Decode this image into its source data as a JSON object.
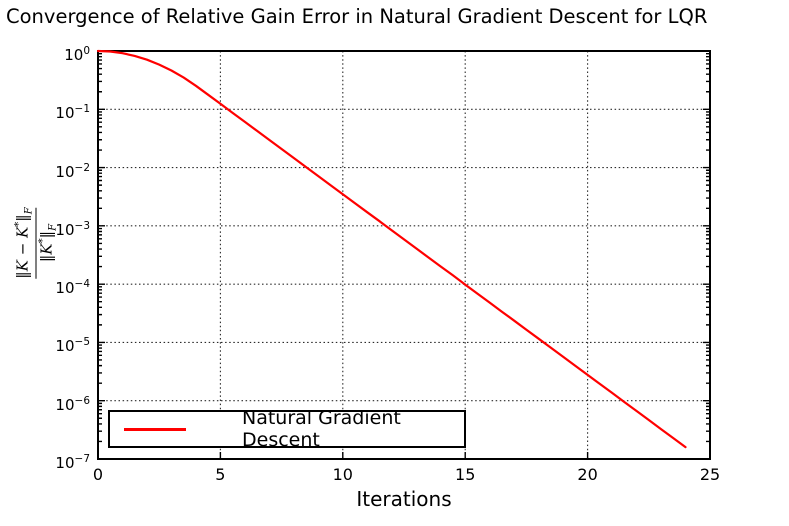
{
  "chart_data": {
    "type": "line",
    "yscale": "log",
    "title": "Convergence of Relative Gain Error in Natural Gradient Descent for LQR",
    "xlabel": "Iterations",
    "ylabel": "‖K − K*‖F / ‖K*‖F",
    "ylabel_parts": {
      "num_body": "‖K − K",
      "num_sup": "*",
      "num_close": "‖",
      "num_sub": "F",
      "den_body": "‖K",
      "den_sup": "*",
      "den_close": "‖",
      "den_sub": "F"
    },
    "xlim": [
      0,
      25
    ],
    "ylim": [
      1e-07,
      1
    ],
    "x_ticks": [
      0,
      5,
      10,
      15,
      20,
      25
    ],
    "y_tick_exponents": [
      0,
      -1,
      -2,
      -3,
      -4,
      -5,
      -6,
      -7
    ],
    "grid": true,
    "grid_style": "dotted",
    "colors": {
      "line": "#ff0000",
      "axes": "#000000",
      "grid": "#2b2b2b"
    },
    "legend": {
      "position": "lower-left",
      "border_color": "#000000",
      "entries": [
        {
          "label": "Natural Gradient Descent",
          "color": "#ff0000"
        }
      ]
    },
    "series": [
      {
        "name": "Natural Gradient Descent",
        "color": "#ff0000",
        "x": [
          0,
          0.5,
          1,
          1.5,
          2,
          2.5,
          3,
          3.5,
          4,
          4.5,
          5,
          5.5,
          6,
          6.5,
          7,
          7.5,
          8,
          8.5,
          9,
          9.5,
          10,
          10.5,
          11,
          11.5,
          12,
          12.5,
          13,
          13.5,
          14,
          14.5,
          15,
          15.5,
          16,
          16.5,
          17,
          17.5,
          18,
          18.5,
          19,
          19.5,
          20,
          20.5,
          21,
          21.5,
          22,
          22.5,
          23,
          23.5,
          24
        ],
        "y": [
          1.0,
          0.979,
          0.918,
          0.824,
          0.709,
          0.585,
          0.462,
          0.349,
          0.253,
          0.177,
          0.124,
          0.0867,
          0.0607,
          0.0425,
          0.0297,
          0.0208,
          0.0146,
          0.0102,
          0.00713,
          0.00499,
          0.00349,
          0.00244,
          0.00171,
          0.0012,
          0.000837,
          0.000586,
          0.00041,
          0.000287,
          0.000201,
          0.000141,
          9.84e-05,
          6.89e-05,
          4.82e-05,
          3.37e-05,
          2.36e-05,
          1.65e-05,
          1.16e-05,
          8.09e-06,
          5.66e-06,
          3.96e-06,
          2.77e-06,
          1.94e-06,
          1.36e-06,
          9.5e-07,
          6.65e-07,
          4.66e-07,
          3.26e-07,
          2.28e-07,
          1.6e-07
        ]
      }
    ]
  }
}
